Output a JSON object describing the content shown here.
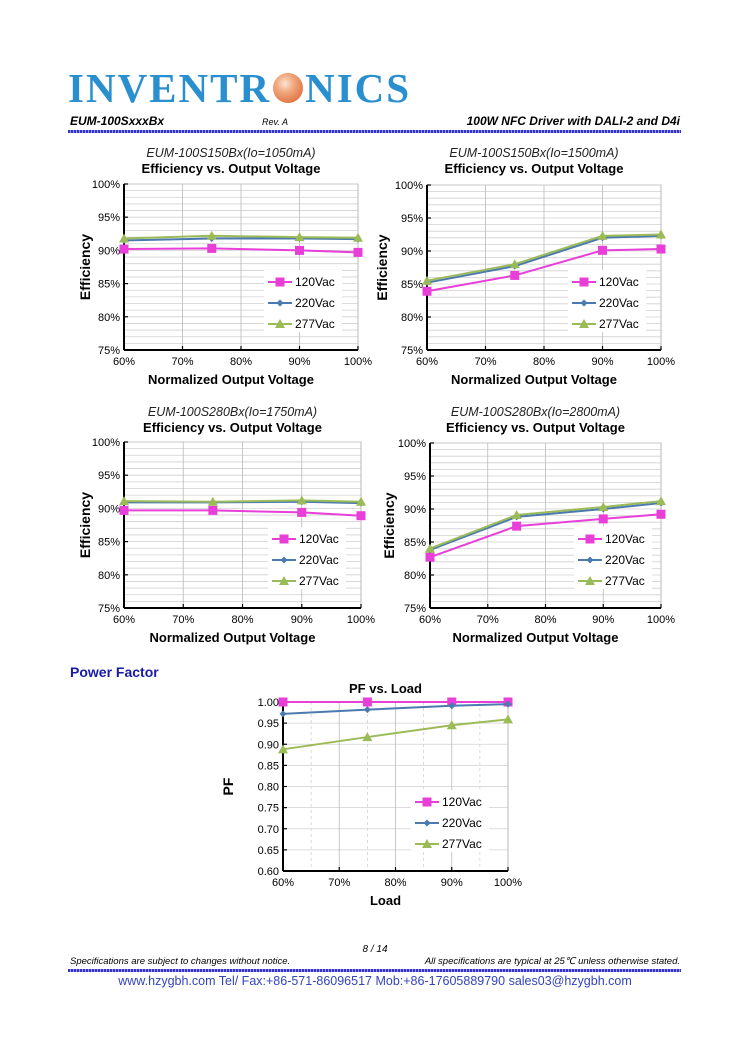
{
  "header": {
    "logo_text_left": "INVENTR",
    "logo_text_right": "NICS",
    "model": "EUM-100SxxxBx",
    "revision": "Rev. A",
    "product_title": "100W NFC Driver with DALI-2 and D4i"
  },
  "colors": {
    "s120": "#e83fd8",
    "s220": "#4a7ab0",
    "s277": "#9bbb59",
    "brand": "#2a8fcf",
    "section": "#1a1aa8"
  },
  "section_power_factor": "Power Factor",
  "chart_data": [
    {
      "type": "line",
      "subtitle": "EUM-100S150Bx(Io=1050mA)",
      "title": "Efficiency vs. Output Voltage",
      "xlabel": "Normalized Output Voltage",
      "ylabel": "Efficiency",
      "x": [
        60,
        75,
        90,
        100
      ],
      "xlim": [
        60,
        100
      ],
      "ylim": [
        75,
        100
      ],
      "xticks": [
        "60%",
        "70%",
        "80%",
        "90%",
        "100%"
      ],
      "yticks": [
        "75%",
        "80%",
        "85%",
        "90%",
        "95%",
        "100%"
      ],
      "legend_position": "center-right",
      "grid": true,
      "series": [
        {
          "name": "120Vac",
          "values": [
            90.2,
            90.3,
            90.0,
            89.7
          ]
        },
        {
          "name": "220Vac",
          "values": [
            91.5,
            91.8,
            91.8,
            91.7
          ]
        },
        {
          "name": "277Vac",
          "values": [
            91.8,
            92.2,
            92.0,
            91.9
          ]
        }
      ]
    },
    {
      "type": "line",
      "subtitle": "EUM-100S150Bx(Io=1500mA)",
      "title": "Efficiency vs. Output Voltage",
      "xlabel": "Normalized Output Voltage",
      "ylabel": "Efficiency",
      "x": [
        60,
        75,
        90,
        100
      ],
      "xlim": [
        60,
        100
      ],
      "ylim": [
        75,
        100
      ],
      "xticks": [
        "60%",
        "70%",
        "80%",
        "90%",
        "100%"
      ],
      "yticks": [
        "75%",
        "80%",
        "85%",
        "90%",
        "95%",
        "100%"
      ],
      "legend_position": "center-right",
      "grid": true,
      "series": [
        {
          "name": "120Vac",
          "values": [
            83.9,
            86.3,
            90.1,
            90.3
          ]
        },
        {
          "name": "220Vac",
          "values": [
            85.2,
            87.7,
            92.0,
            92.3
          ]
        },
        {
          "name": "277Vac",
          "values": [
            85.5,
            88.0,
            92.3,
            92.5
          ]
        }
      ]
    },
    {
      "type": "line",
      "subtitle": "EUM-100S280Bx(Io=1750mA)",
      "title": "Efficiency vs. Output Voltage",
      "xlabel": "Normalized Output Voltage",
      "ylabel": "Efficiency",
      "x": [
        60,
        75,
        90,
        100
      ],
      "xlim": [
        60,
        100
      ],
      "ylim": [
        75,
        100
      ],
      "xticks": [
        "60%",
        "70%",
        "80%",
        "90%",
        "100%"
      ],
      "yticks": [
        "75%",
        "80%",
        "85%",
        "90%",
        "95%",
        "100%"
      ],
      "legend_position": "center-right",
      "grid": true,
      "series": [
        {
          "name": "120Vac",
          "values": [
            89.7,
            89.7,
            89.4,
            88.9
          ]
        },
        {
          "name": "220Vac",
          "values": [
            90.9,
            90.9,
            91.0,
            90.8
          ]
        },
        {
          "name": "277Vac",
          "values": [
            91.1,
            91.0,
            91.2,
            91.0
          ]
        }
      ]
    },
    {
      "type": "line",
      "subtitle": "EUM-100S280Bx(Io=2800mA)",
      "title": "Efficiency vs. Output Voltage",
      "xlabel": "Normalized Output Voltage",
      "ylabel": "Efficiency",
      "x": [
        60,
        75,
        90,
        100
      ],
      "xlim": [
        60,
        100
      ],
      "ylim": [
        75,
        100
      ],
      "xticks": [
        "60%",
        "70%",
        "80%",
        "90%",
        "100%"
      ],
      "yticks": [
        "75%",
        "80%",
        "85%",
        "90%",
        "95%",
        "100%"
      ],
      "legend_position": "center-right",
      "grid": true,
      "series": [
        {
          "name": "120Vac",
          "values": [
            82.7,
            87.4,
            88.5,
            89.2
          ]
        },
        {
          "name": "220Vac",
          "values": [
            83.8,
            88.8,
            90.0,
            90.9
          ]
        },
        {
          "name": "277Vac",
          "values": [
            84.0,
            89.1,
            90.3,
            91.2
          ]
        }
      ]
    },
    {
      "type": "line",
      "subtitle": "",
      "title": "PF vs. Load",
      "xlabel": "Load",
      "ylabel": "PF",
      "x": [
        60,
        75,
        90,
        100
      ],
      "xlim": [
        60,
        100
      ],
      "ylim": [
        0.6,
        1.0
      ],
      "xticks": [
        "60%",
        "70%",
        "80%",
        "90%",
        "100%"
      ],
      "yticks": [
        "0.60",
        "0.65",
        "0.70",
        "0.75",
        "0.80",
        "0.85",
        "0.90",
        "0.95",
        "1.00"
      ],
      "legend_position": "center-right",
      "grid": true,
      "series": [
        {
          "name": "120Vac",
          "values": [
            1.0,
            1.0,
            1.0,
            1.0
          ]
        },
        {
          "name": "220Vac",
          "values": [
            0.972,
            0.982,
            0.991,
            0.995
          ]
        },
        {
          "name": "277Vac",
          "values": [
            0.888,
            0.917,
            0.945,
            0.959
          ]
        }
      ]
    }
  ],
  "footer": {
    "page": "8 / 14",
    "left_note": "Specifications are subject to changes without notice.",
    "right_note": "All specifications are typical at 25℃ unless otherwise stated.",
    "contact": "www.hzygbh.com  Tel/ Fax:+86-571-86096517 Mob:+86-17605889790  sales03@hzygbh.com"
  }
}
